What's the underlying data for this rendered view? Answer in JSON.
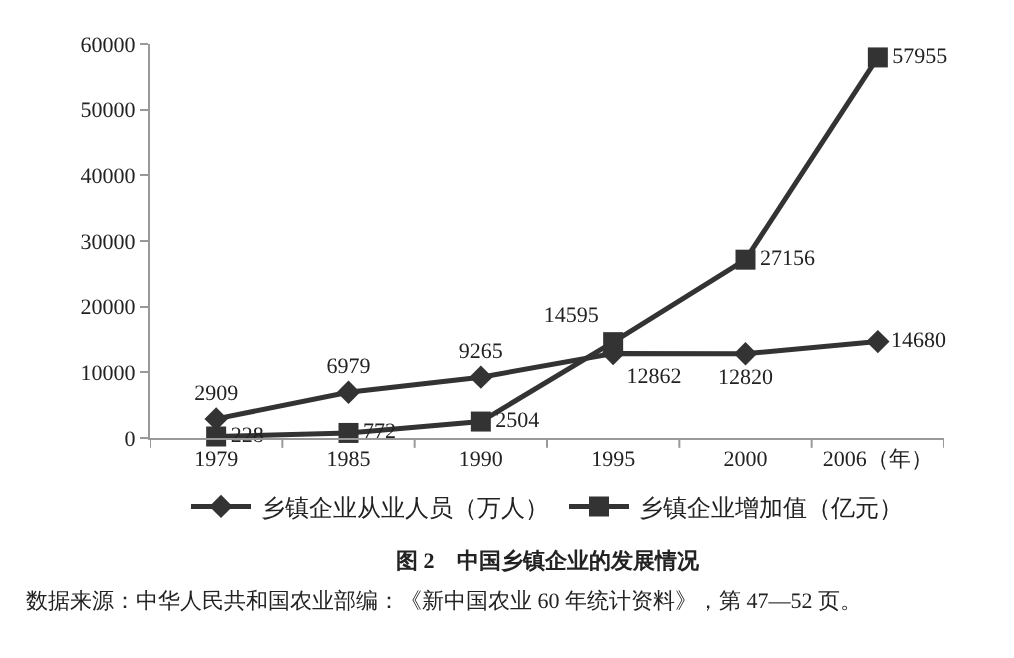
{
  "chart_data": {
    "type": "line",
    "title": "图 2　中国乡镇企业的发展情况",
    "categories": [
      "1979",
      "1985",
      "1990",
      "1995",
      "2000",
      "2006（年）"
    ],
    "series": [
      {
        "name": "乡镇企业从业人员（万人）",
        "color": "#333333",
        "marker": "diamond",
        "values": [
          2909,
          6979,
          9265,
          12862,
          12820,
          14680
        ]
      },
      {
        "name": "乡镇企业增加值（亿元）",
        "color": "#333333",
        "marker": "square",
        "values": [
          228,
          772,
          2504,
          14595,
          27156,
          57955
        ]
      }
    ],
    "ylim": [
      0,
      60000
    ],
    "yticks": [
      0,
      10000,
      20000,
      30000,
      40000,
      50000,
      60000
    ],
    "legend": "bottom",
    "data_labels": true,
    "line_style": "solid",
    "annotations": [
      "数据来源：中华人民共和国农业部编：《新中国农业 60 年统计资料》，第 47—52 页。"
    ]
  }
}
